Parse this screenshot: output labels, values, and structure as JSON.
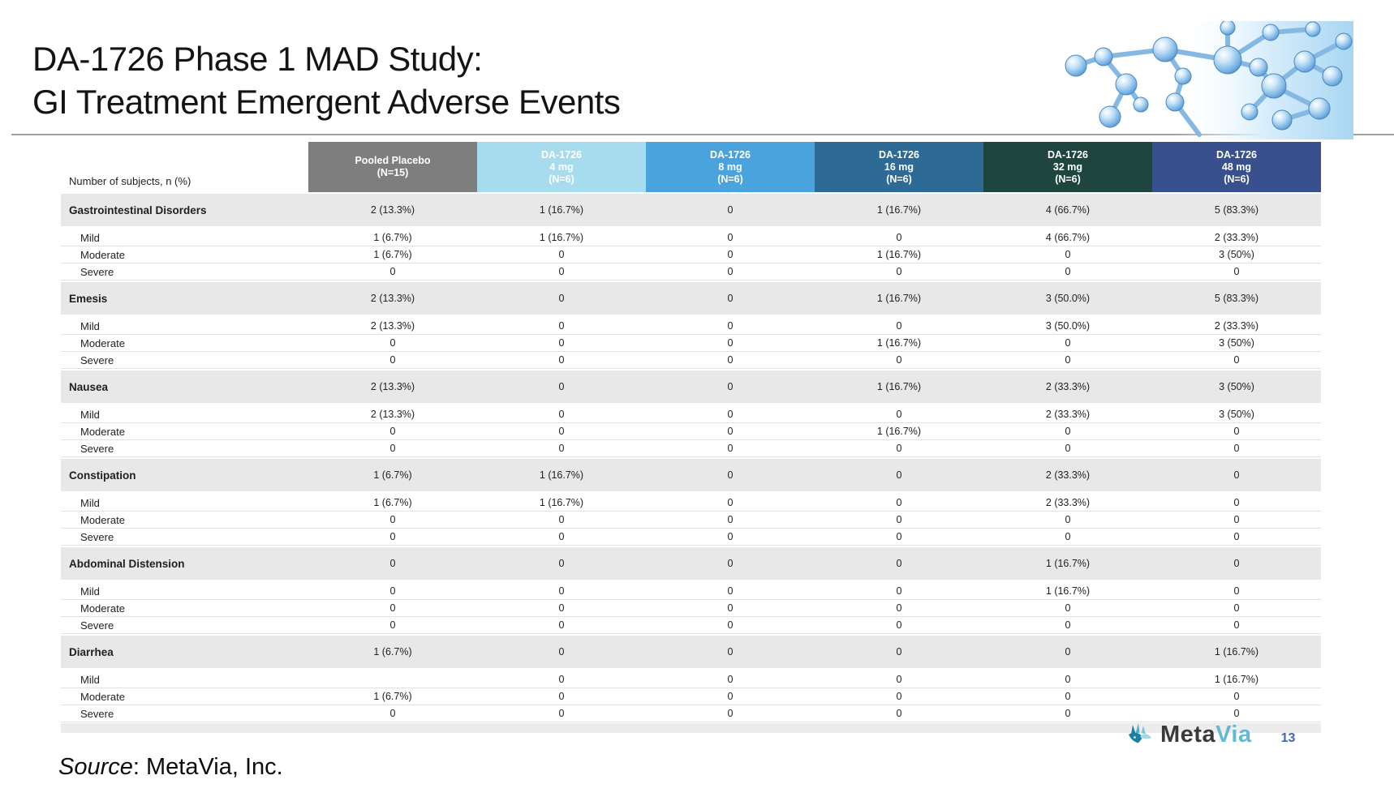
{
  "slide": {
    "title_line1": "DA-1726 Phase 1 MAD Study:",
    "title_line2": "GI Treatment Emergent Adverse Events",
    "source_label": "Source",
    "source_text": ": MetaVia, Inc.",
    "page_number": "13",
    "logo_meta": "Meta",
    "logo_via": "Via"
  },
  "brand": {
    "logo_text_color": "#3a3a3a",
    "logo_accent_color": "#64b9d3",
    "page_number_color": "#4466b0",
    "molecule_blue": "#7ab4e4"
  },
  "table": {
    "row_header_label": "Number of subjects, n (%)",
    "category_row_bg": "#e8e8e8",
    "columns": [
      {
        "lines": [
          "Pooled Placebo",
          "(N=15)"
        ],
        "bg": "#7e7e7e",
        "fg": "#ffffff"
      },
      {
        "lines": [
          "DA-1726",
          "4 mg",
          "(N=6)"
        ],
        "bg": "#a7dbee",
        "fg": "#ffffff"
      },
      {
        "lines": [
          "DA-1726",
          "8 mg",
          "(N=6)"
        ],
        "bg": "#4aa3dd",
        "fg": "#ffffff"
      },
      {
        "lines": [
          "DA-1726",
          "16 mg",
          "(N=6)"
        ],
        "bg": "#2e6a96",
        "fg": "#ffffff"
      },
      {
        "lines": [
          "DA-1726",
          "32 mg",
          "(N=6)"
        ],
        "bg": "#1e463f",
        "fg": "#ffffff"
      },
      {
        "lines": [
          "DA-1726",
          "48 mg",
          "(N=6)"
        ],
        "bg": "#39508e",
        "fg": "#ffffff"
      }
    ],
    "rows": [
      {
        "type": "category",
        "label": "Gastrointestinal Disorders",
        "values": [
          "2 (13.3%)",
          "1 (16.7%)",
          "0",
          "1 (16.7%)",
          "4 (66.7%)",
          "5 (83.3%)"
        ]
      },
      {
        "type": "severity",
        "label": "Mild",
        "values": [
          "1 (6.7%)",
          "1 (16.7%)",
          "0",
          "0",
          "4 (66.7%)",
          "2 (33.3%)"
        ]
      },
      {
        "type": "severity",
        "label": "Moderate",
        "values": [
          "1 (6.7%)",
          "0",
          "0",
          "1 (16.7%)",
          "0",
          "3 (50%)"
        ]
      },
      {
        "type": "severity",
        "label": "Severe",
        "values": [
          "0",
          "0",
          "0",
          "0",
          "0",
          "0"
        ]
      },
      {
        "type": "category",
        "label": "Emesis",
        "values": [
          "2 (13.3%)",
          "0",
          "0",
          "1 (16.7%)",
          "3 (50.0%)",
          "5 (83.3%)"
        ]
      },
      {
        "type": "severity",
        "label": "Mild",
        "values": [
          "2 (13.3%)",
          "0",
          "0",
          "0",
          "3 (50.0%)",
          "2 (33.3%)"
        ]
      },
      {
        "type": "severity",
        "label": "Moderate",
        "values": [
          "0",
          "0",
          "0",
          "1 (16.7%)",
          "0",
          "3 (50%)"
        ]
      },
      {
        "type": "severity",
        "label": "Severe",
        "values": [
          "0",
          "0",
          "0",
          "0",
          "0",
          "0"
        ]
      },
      {
        "type": "category",
        "label": "Nausea",
        "values": [
          "2 (13.3%)",
          "0",
          "0",
          "1 (16.7%)",
          "2 (33.3%)",
          "3 (50%)"
        ]
      },
      {
        "type": "severity",
        "label": "Mild",
        "values": [
          "2 (13.3%)",
          "0",
          "0",
          "0",
          "2 (33.3%)",
          "3 (50%)"
        ]
      },
      {
        "type": "severity",
        "label": "Moderate",
        "values": [
          "0",
          "0",
          "0",
          "1 (16.7%)",
          "0",
          "0"
        ]
      },
      {
        "type": "severity",
        "label": "Severe",
        "values": [
          "0",
          "0",
          "0",
          "0",
          "0",
          "0"
        ]
      },
      {
        "type": "category",
        "label": "Constipation",
        "values": [
          "1 (6.7%)",
          "1 (16.7%)",
          "0",
          "0",
          "2 (33.3%)",
          "0"
        ]
      },
      {
        "type": "severity",
        "label": "Mild",
        "values": [
          "1 (6.7%)",
          "1 (16.7%)",
          "0",
          "0",
          "2 (33.3%)",
          "0"
        ]
      },
      {
        "type": "severity",
        "label": "Moderate",
        "values": [
          "0",
          "0",
          "0",
          "0",
          "0",
          "0"
        ]
      },
      {
        "type": "severity",
        "label": "Severe",
        "values": [
          "0",
          "0",
          "0",
          "0",
          "0",
          "0"
        ]
      },
      {
        "type": "category",
        "label": "Abdominal Distension",
        "values": [
          "0",
          "0",
          "0",
          "0",
          "1 (16.7%)",
          "0"
        ]
      },
      {
        "type": "severity",
        "label": "Mild",
        "values": [
          "0",
          "0",
          "0",
          "0",
          "1 (16.7%)",
          "0"
        ]
      },
      {
        "type": "severity",
        "label": "Moderate",
        "values": [
          "0",
          "0",
          "0",
          "0",
          "0",
          "0"
        ]
      },
      {
        "type": "severity",
        "label": "Severe",
        "values": [
          "0",
          "0",
          "0",
          "0",
          "0",
          "0"
        ]
      },
      {
        "type": "category",
        "label": "Diarrhea",
        "values": [
          "1 (6.7%)",
          "0",
          "0",
          "0",
          "0",
          "1 (16.7%)"
        ]
      },
      {
        "type": "severity",
        "label": "Mild",
        "values": [
          "",
          "0",
          "0",
          "0",
          "0",
          "1 (16.7%)"
        ]
      },
      {
        "type": "severity",
        "label": "Moderate",
        "values": [
          "1 (6.7%)",
          "0",
          "0",
          "0",
          "0",
          "0"
        ]
      },
      {
        "type": "severity",
        "label": "Severe",
        "values": [
          "0",
          "0",
          "0",
          "0",
          "0",
          "0"
        ]
      }
    ]
  }
}
